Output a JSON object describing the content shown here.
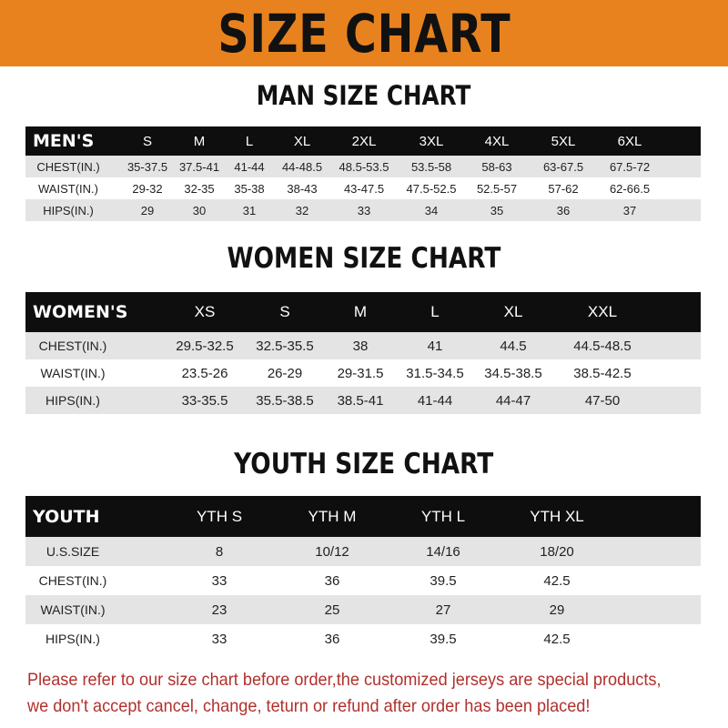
{
  "banner_title": "SIZE CHART",
  "colors": {
    "banner": "#e8821e",
    "header_row": "#0e0e0e",
    "stripe": "#e4e4e4",
    "note": "#b2302c"
  },
  "men": {
    "title": "MAN SIZE CHART",
    "headers": [
      "MEN'S",
      "S",
      "M",
      "L",
      "XL",
      "2XL",
      "3XL",
      "4XL",
      "5XL",
      "6XL"
    ],
    "rows": [
      [
        "CHEST(IN.)",
        "35-37.5",
        "37.5-41",
        "41-44",
        "44-48.5",
        "48.5-53.5",
        "53.5-58",
        "58-63",
        "63-67.5",
        "67.5-72"
      ],
      [
        "WAIST(IN.)",
        "29-32",
        "32-35",
        "35-38",
        "38-43",
        "43-47.5",
        "47.5-52.5",
        "52.5-57",
        "57-62",
        "62-66.5"
      ],
      [
        "HIPS(IN.)",
        "29",
        "30",
        "31",
        "32",
        "33",
        "34",
        "35",
        "36",
        "37"
      ]
    ]
  },
  "women": {
    "title": "WOMEN SIZE CHART",
    "headers": [
      "WOMEN'S",
      "XS",
      "S",
      "M",
      "L",
      "XL",
      "XXL"
    ],
    "rows": [
      [
        "CHEST(IN.)",
        "29.5-32.5",
        "32.5-35.5",
        "38",
        "41",
        "44.5",
        "44.5-48.5"
      ],
      [
        "WAIST(IN.)",
        "23.5-26",
        "26-29",
        "29-31.5",
        "31.5-34.5",
        "34.5-38.5",
        "38.5-42.5"
      ],
      [
        "HIPS(IN.)",
        "33-35.5",
        "35.5-38.5",
        "38.5-41",
        "41-44",
        "44-47",
        "47-50"
      ]
    ]
  },
  "youth": {
    "title": "YOUTH SIZE CHART",
    "headers": [
      "YOUTH",
      "YTH S",
      "YTH M",
      "YTH L",
      "YTH XL"
    ],
    "rows": [
      [
        "U.S.SIZE",
        "8",
        "10/12",
        "14/16",
        "18/20"
      ],
      [
        "CHEST(IN.)",
        "33",
        "36",
        "39.5",
        "42.5"
      ],
      [
        "WAIST(IN.)",
        "23",
        "25",
        "27",
        "29"
      ],
      [
        "HIPS(IN.)",
        "33",
        "36",
        "39.5",
        "42.5"
      ]
    ]
  },
  "note": {
    "line1": "Please refer to our size chart before order,the customized jerseys are special products,",
    "line2": "we don't accept cancel, change, teturn or refund after order has been placed!"
  }
}
